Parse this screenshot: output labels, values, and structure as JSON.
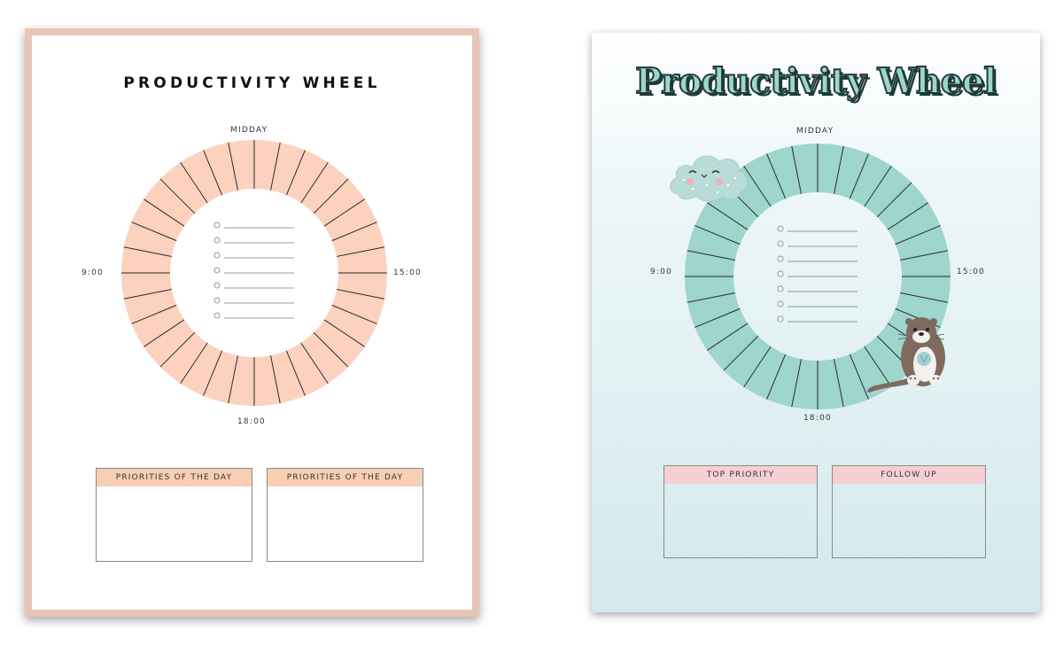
{
  "sheets": [
    {
      "title": "PRODUCTIVITY WHEEL",
      "labels": {
        "top": "MIDDAY",
        "left": "9:00",
        "right": "15:00",
        "bottom": "18:00"
      },
      "boxes": [
        "PRIORITIES OF THE DAY",
        "PRIORITIES OF THE DAY"
      ],
      "colors": {
        "wheel": "#fcd2be",
        "frame": "#e8c5b4",
        "box_header": "#f8cfb3"
      }
    },
    {
      "title": "Productivity Wheel",
      "labels": {
        "top": "MIDDAY",
        "left": "9:00",
        "right": "15:00",
        "bottom": "18:00"
      },
      "boxes": [
        "TOP PRIORITY",
        "FOLLOW UP"
      ],
      "colors": {
        "wheel": "#9ed5cd",
        "box_header": "#f6cfd3",
        "title_fill": "#9fd5cc"
      },
      "illustrations": [
        "cloud-illustration",
        "otter-illustration"
      ]
    }
  ],
  "wheel_segments": 32,
  "checklist_items": 7
}
